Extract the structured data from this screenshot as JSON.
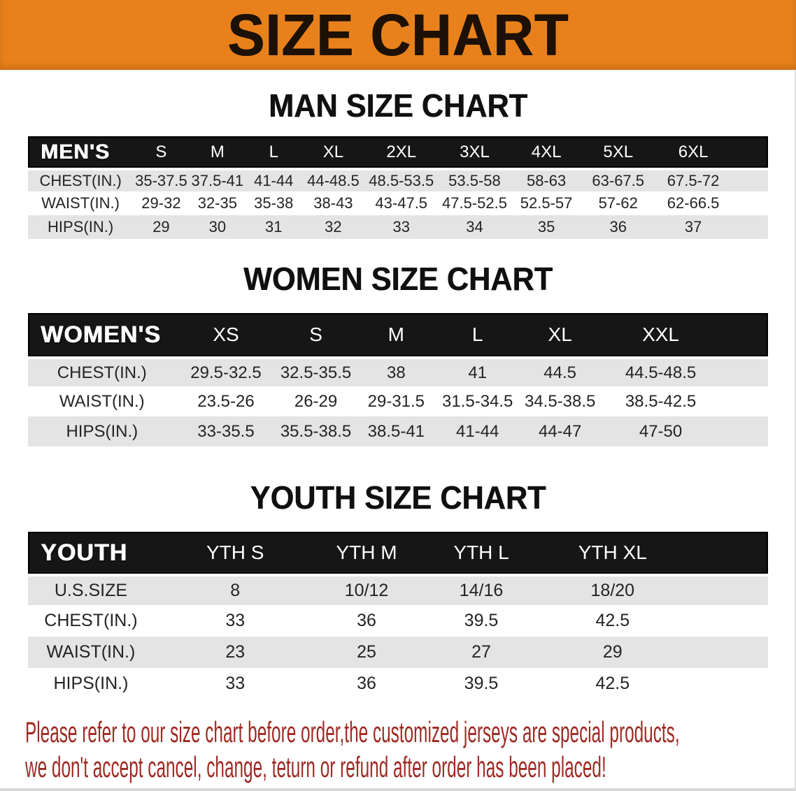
{
  "banner": {
    "title": "SIZE CHART"
  },
  "sections": [
    {
      "heading": "MAN SIZE CHART",
      "table": {
        "label": "MEN'S",
        "columns": [
          "S",
          "M",
          "L",
          "XL",
          "2XL",
          "3XL",
          "4XL",
          "5XL",
          "6XL"
        ],
        "rows": [
          {
            "label": "CHEST(IN.)",
            "values": [
              "35-37.5",
              "37.5-41",
              "41-44",
              "44-48.5",
              "48.5-53.5",
              "53.5-58",
              "58-63",
              "63-67.5",
              "67.5-72"
            ]
          },
          {
            "label": "WAIST(IN.)",
            "values": [
              "29-32",
              "32-35",
              "35-38",
              "38-43",
              "43-47.5",
              "47.5-52.5",
              "52.5-57",
              "57-62",
              "62-66.5"
            ]
          },
          {
            "label": "HIPS(IN.)",
            "values": [
              "29",
              "30",
              "31",
              "32",
              "33",
              "34",
              "35",
              "36",
              "37"
            ]
          }
        ]
      }
    },
    {
      "heading": "WOMEN SIZE CHART",
      "table": {
        "label": "WOMEN'S",
        "columns": [
          "XS",
          "S",
          "M",
          "L",
          "XL",
          "XXL"
        ],
        "rows": [
          {
            "label": "CHEST(IN.)",
            "values": [
              "29.5-32.5",
              "32.5-35.5",
              "38",
              "41",
              "44.5",
              "44.5-48.5"
            ]
          },
          {
            "label": "WAIST(IN.)",
            "values": [
              "23.5-26",
              "26-29",
              "29-31.5",
              "31.5-34.5",
              "34.5-38.5",
              "38.5-42.5"
            ]
          },
          {
            "label": "HIPS(IN.)",
            "values": [
              "33-35.5",
              "35.5-38.5",
              "38.5-41",
              "41-44",
              "44-47",
              "47-50"
            ]
          }
        ]
      }
    },
    {
      "heading": "YOUTH SIZE CHART",
      "table": {
        "label": "YOUTH",
        "columns": [
          "YTH S",
          "YTH M",
          "YTH L",
          "YTH XL"
        ],
        "rows": [
          {
            "label": "U.S.SIZE",
            "values": [
              "8",
              "10/12",
              "14/16",
              "18/20"
            ]
          },
          {
            "label": "CHEST(IN.)",
            "values": [
              "33",
              "36",
              "39.5",
              "42.5"
            ]
          },
          {
            "label": "WAIST(IN.)",
            "values": [
              "23",
              "25",
              "27",
              "29"
            ]
          },
          {
            "label": "HIPS(IN.)",
            "values": [
              "33",
              "36",
              "39.5",
              "42.5"
            ]
          }
        ]
      }
    }
  ],
  "disclaimer": {
    "line1": "Please refer to our size chart before order,the customized jerseys are special products,",
    "line2": "we don't accept cancel, change, teturn or refund after order has been placed!"
  },
  "colors": {
    "banner_bg": "#E8811C",
    "header_bar": "#161616",
    "row_stripe": "#E4E4E4",
    "disclaimer_text": "#9E2A23"
  }
}
